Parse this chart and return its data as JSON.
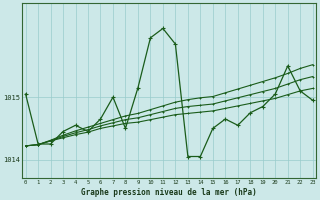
{
  "title": "Graphe pression niveau de la mer (hPa)",
  "background_color": "#cce8e8",
  "grid_color": "#99cccc",
  "line_color": "#1a5c1a",
  "x_labels": [
    "0",
    "1",
    "2",
    "3",
    "4",
    "5",
    "6",
    "7",
    "8",
    "9",
    "10",
    "11",
    "12",
    "13",
    "14",
    "15",
    "16",
    "17",
    "18",
    "19",
    "20",
    "21",
    "22",
    "23"
  ],
  "yticks": [
    1014,
    1015
  ],
  "ylim": [
    1013.7,
    1016.5
  ],
  "xlim": [
    -0.3,
    23.3
  ],
  "line_main": [
    1015.05,
    1014.25,
    1014.25,
    1014.45,
    1014.55,
    1014.45,
    1014.65,
    1015.0,
    1014.5,
    1015.15,
    1015.95,
    1016.1,
    1015.85,
    1014.05,
    1014.05,
    1014.5,
    1014.65,
    1014.55,
    1014.75,
    1014.85,
    1015.05,
    1015.5,
    1015.1,
    1014.95
  ],
  "line_trend1": [
    1014.22,
    1014.24,
    1014.3,
    1014.35,
    1014.4,
    1014.44,
    1014.5,
    1014.54,
    1014.58,
    1014.6,
    1014.64,
    1014.68,
    1014.72,
    1014.74,
    1014.76,
    1014.78,
    1014.82,
    1014.86,
    1014.9,
    1014.94,
    1014.98,
    1015.04,
    1015.1,
    1015.14
  ],
  "line_trend2": [
    1014.22,
    1014.24,
    1014.3,
    1014.37,
    1014.43,
    1014.48,
    1014.54,
    1014.59,
    1014.64,
    1014.67,
    1014.72,
    1014.77,
    1014.82,
    1014.85,
    1014.87,
    1014.89,
    1014.94,
    1014.99,
    1015.04,
    1015.09,
    1015.14,
    1015.21,
    1015.28,
    1015.33
  ],
  "line_trend3": [
    1014.22,
    1014.24,
    1014.31,
    1014.39,
    1014.46,
    1014.52,
    1014.58,
    1014.64,
    1014.7,
    1014.74,
    1014.8,
    1014.86,
    1014.92,
    1014.96,
    1014.99,
    1015.01,
    1015.07,
    1015.13,
    1015.19,
    1015.25,
    1015.31,
    1015.38,
    1015.46,
    1015.52
  ]
}
